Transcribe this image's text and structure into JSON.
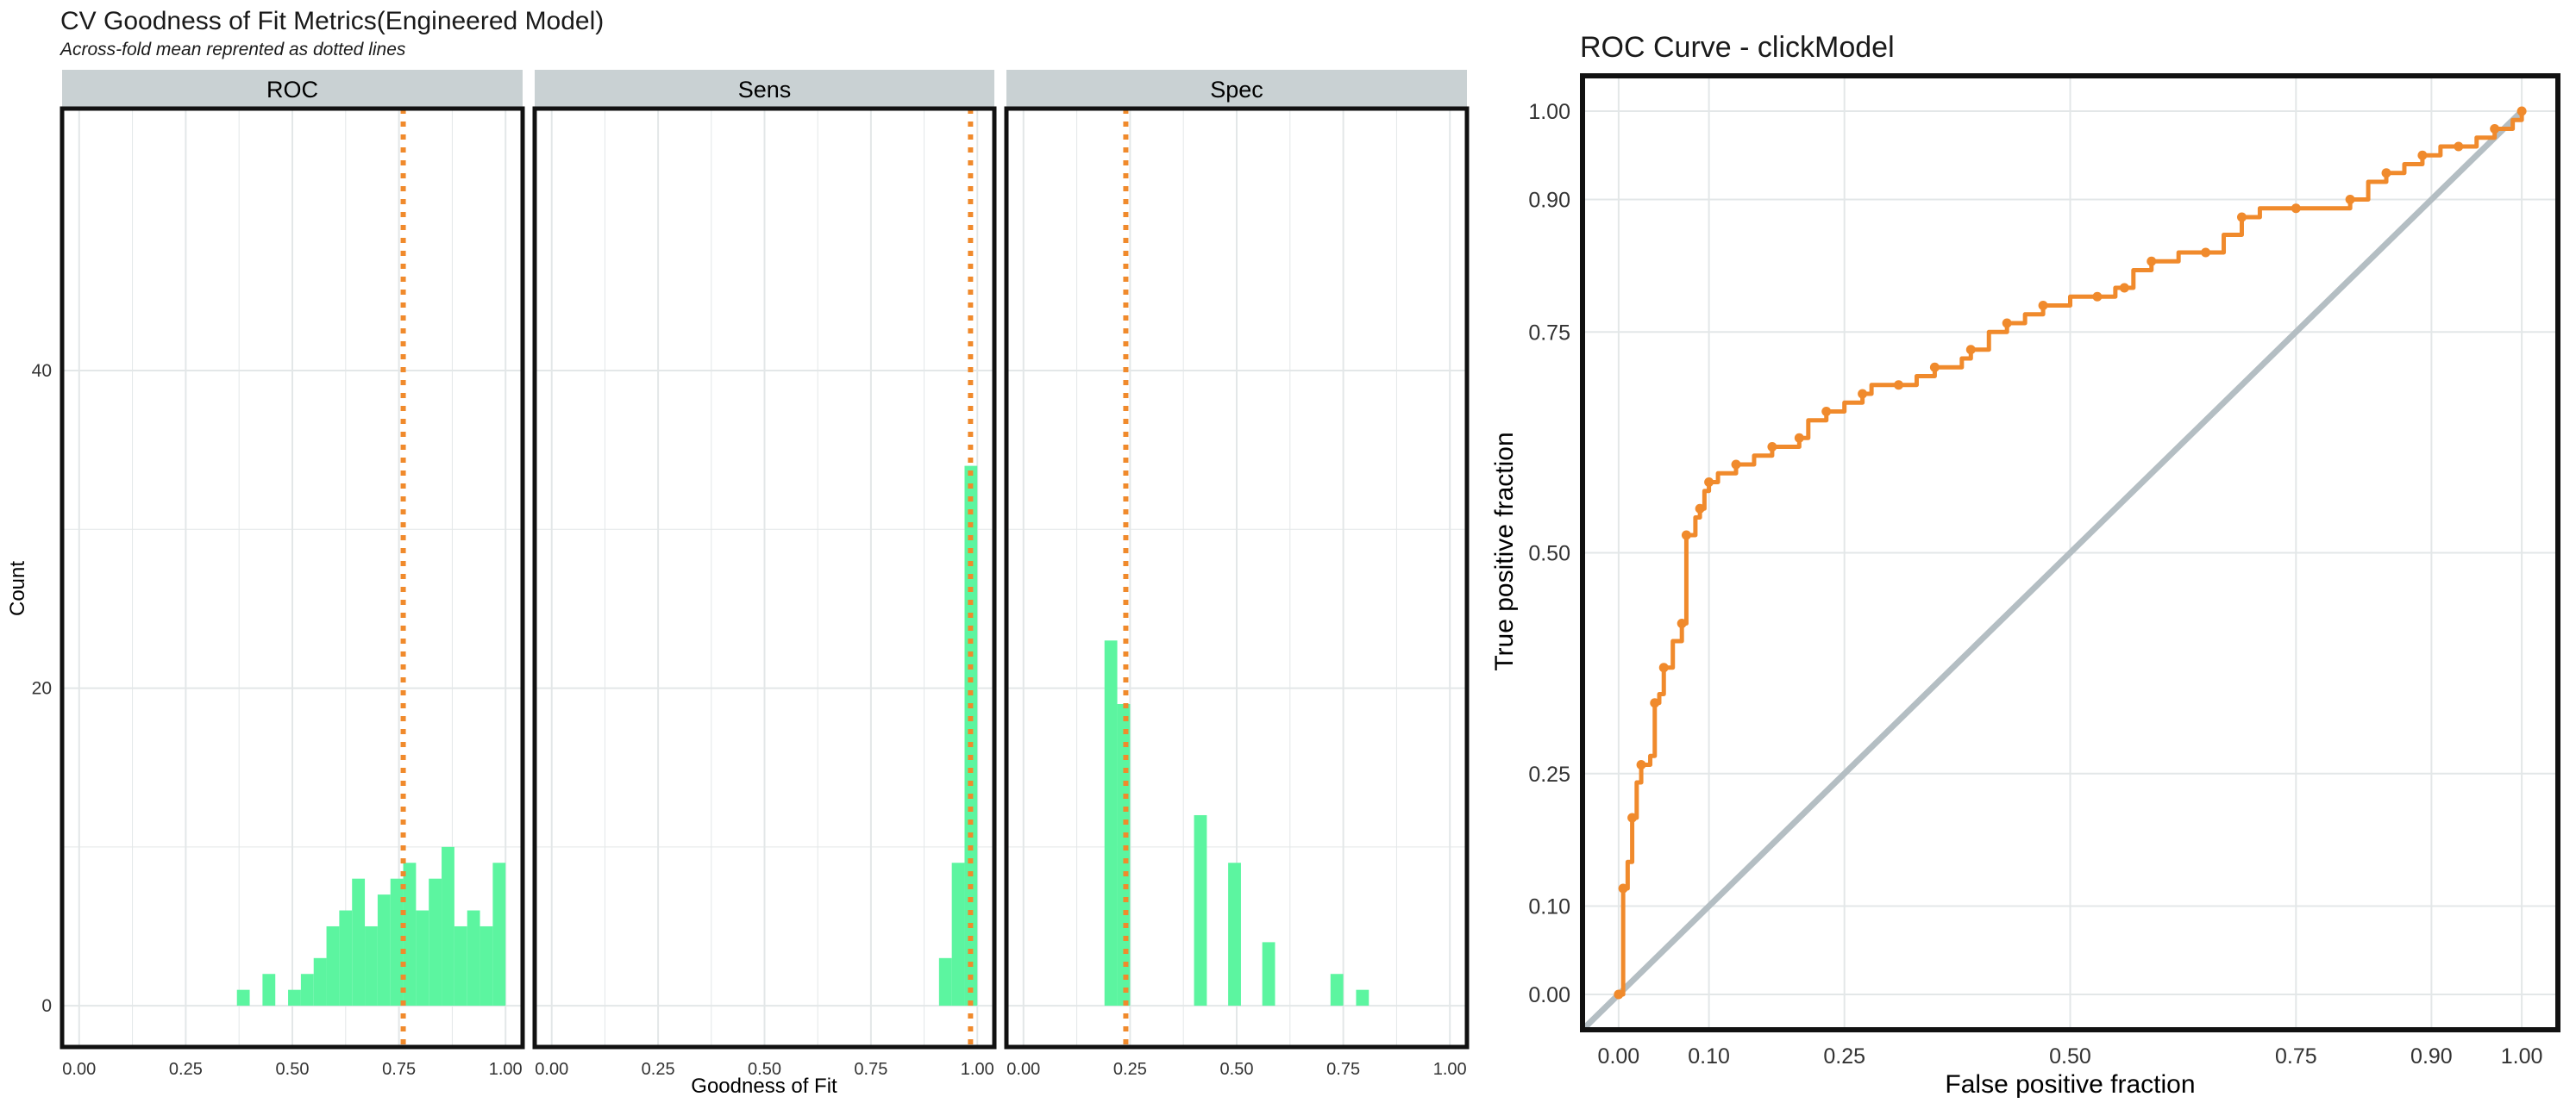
{
  "colors": {
    "bar": "#5cf5a0",
    "mean_line": "#f08a2c",
    "roc_line": "#f08a2c",
    "diagonal": "#b4bec3",
    "strip": "#c9d1d3",
    "grid": "#e3e7e8",
    "frame": "#111111"
  },
  "chart_data": [
    {
      "type": "bar",
      "title": "CV Goodness of Fit Metrics(Engineered Model)",
      "subtitle": "Across-fold mean reprented as dotted lines",
      "xlabel": "Goodness of Fit",
      "ylabel": "Count",
      "xlim": [
        -0.04,
        1.04
      ],
      "ylim": [
        -2.6,
        56.5
      ],
      "x_ticks": [
        "0.00",
        "0.25",
        "0.50",
        "0.75",
        "1.00"
      ],
      "y_ticks": [
        "0",
        "20",
        "40"
      ],
      "bin_width": 0.03,
      "grid": true,
      "facets": [
        {
          "label": "ROC",
          "mean": 0.76,
          "bins": [
            {
              "x": 0.385,
              "count": 1
            },
            {
              "x": 0.445,
              "count": 2
            },
            {
              "x": 0.505,
              "count": 1
            },
            {
              "x": 0.535,
              "count": 2
            },
            {
              "x": 0.565,
              "count": 3
            },
            {
              "x": 0.595,
              "count": 5
            },
            {
              "x": 0.625,
              "count": 6
            },
            {
              "x": 0.655,
              "count": 8
            },
            {
              "x": 0.685,
              "count": 5
            },
            {
              "x": 0.715,
              "count": 7
            },
            {
              "x": 0.745,
              "count": 8
            },
            {
              "x": 0.775,
              "count": 9
            },
            {
              "x": 0.805,
              "count": 6
            },
            {
              "x": 0.835,
              "count": 8
            },
            {
              "x": 0.865,
              "count": 10
            },
            {
              "x": 0.895,
              "count": 5
            },
            {
              "x": 0.925,
              "count": 6
            },
            {
              "x": 0.955,
              "count": 5
            },
            {
              "x": 0.985,
              "count": 9
            }
          ]
        },
        {
          "label": "Sens",
          "mean": 0.984,
          "bins": [
            {
              "x": 0.925,
              "count": 3
            },
            {
              "x": 0.955,
              "count": 9
            },
            {
              "x": 0.985,
              "count": 34
            }
          ]
        },
        {
          "label": "Spec",
          "mean": 0.24,
          "bins": [
            {
              "x": 0.205,
              "count": 23
            },
            {
              "x": 0.235,
              "count": 19
            },
            {
              "x": 0.415,
              "count": 12
            },
            {
              "x": 0.495,
              "count": 9
            },
            {
              "x": 0.575,
              "count": 4
            },
            {
              "x": 0.735,
              "count": 2
            },
            {
              "x": 0.795,
              "count": 1
            }
          ]
        }
      ]
    },
    {
      "type": "line",
      "title": "ROC Curve - clickModel",
      "xlabel": "False positive fraction",
      "ylabel": "True positive fraction",
      "xlim": [
        -0.04,
        1.04
      ],
      "ylim": [
        -0.04,
        1.04
      ],
      "ticks": [
        "0.00",
        "0.10",
        "0.25",
        "0.50",
        "0.75",
        "0.90",
        "1.00"
      ],
      "grid": true,
      "points": [
        [
          0.0,
          0.0
        ],
        [
          0.005,
          0.03
        ],
        [
          0.005,
          0.12
        ],
        [
          0.01,
          0.15
        ],
        [
          0.015,
          0.2
        ],
        [
          0.02,
          0.24
        ],
        [
          0.025,
          0.26
        ],
        [
          0.035,
          0.27
        ],
        [
          0.04,
          0.33
        ],
        [
          0.045,
          0.34
        ],
        [
          0.05,
          0.37
        ],
        [
          0.06,
          0.4
        ],
        [
          0.07,
          0.42
        ],
        [
          0.075,
          0.47
        ],
        [
          0.075,
          0.52
        ],
        [
          0.085,
          0.54
        ],
        [
          0.09,
          0.55
        ],
        [
          0.095,
          0.57
        ],
        [
          0.1,
          0.58
        ],
        [
          0.11,
          0.59
        ],
        [
          0.13,
          0.6
        ],
        [
          0.15,
          0.61
        ],
        [
          0.17,
          0.62
        ],
        [
          0.19,
          0.62
        ],
        [
          0.2,
          0.63
        ],
        [
          0.21,
          0.65
        ],
        [
          0.23,
          0.66
        ],
        [
          0.25,
          0.67
        ],
        [
          0.27,
          0.68
        ],
        [
          0.28,
          0.69
        ],
        [
          0.31,
          0.69
        ],
        [
          0.33,
          0.7
        ],
        [
          0.35,
          0.71
        ],
        [
          0.38,
          0.72
        ],
        [
          0.39,
          0.73
        ],
        [
          0.41,
          0.75
        ],
        [
          0.43,
          0.76
        ],
        [
          0.45,
          0.77
        ],
        [
          0.47,
          0.78
        ],
        [
          0.5,
          0.79
        ],
        [
          0.53,
          0.79
        ],
        [
          0.55,
          0.8
        ],
        [
          0.56,
          0.8
        ],
        [
          0.57,
          0.82
        ],
        [
          0.59,
          0.83
        ],
        [
          0.62,
          0.84
        ],
        [
          0.65,
          0.84
        ],
        [
          0.67,
          0.86
        ],
        [
          0.69,
          0.88
        ],
        [
          0.71,
          0.89
        ],
        [
          0.75,
          0.89
        ],
        [
          0.79,
          0.89
        ],
        [
          0.81,
          0.9
        ],
        [
          0.83,
          0.92
        ],
        [
          0.85,
          0.93
        ],
        [
          0.87,
          0.94
        ],
        [
          0.89,
          0.95
        ],
        [
          0.91,
          0.96
        ],
        [
          0.93,
          0.96
        ],
        [
          0.95,
          0.97
        ],
        [
          0.97,
          0.98
        ],
        [
          0.99,
          0.99
        ],
        [
          1.0,
          1.0
        ]
      ]
    }
  ]
}
